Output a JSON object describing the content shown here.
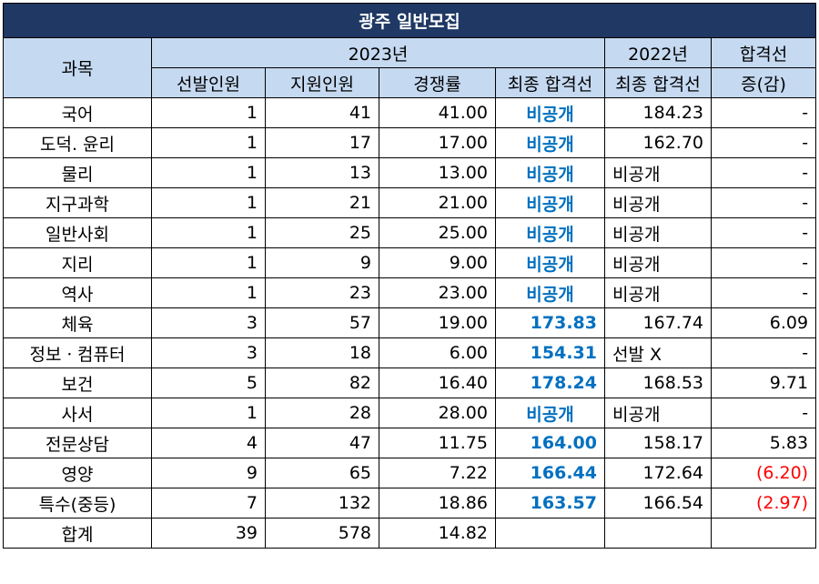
{
  "title": "광주 일반모집",
  "header": {
    "subject": "과목",
    "year2023": "2023년",
    "year2022": "2022년",
    "cutoff_top": "합격선",
    "cutoff_bottom": "증(감)",
    "selected": "선발인원",
    "applicants": "지원인원",
    "ratio": "경쟁률",
    "final_cutoff_2023": "최종 합격선",
    "final_cutoff_2022": "최종 합격선"
  },
  "rows": [
    {
      "subject": "국어",
      "selected": "1",
      "applicants": "41",
      "ratio": "41.00",
      "cut2023": "비공개",
      "cut2022": "184.23",
      "change": "-"
    },
    {
      "subject": "도덕. 윤리",
      "selected": "1",
      "applicants": "17",
      "ratio": "17.00",
      "cut2023": "비공개",
      "cut2022": "162.70",
      "change": "-"
    },
    {
      "subject": "물리",
      "selected": "1",
      "applicants": "13",
      "ratio": "13.00",
      "cut2023": "비공개",
      "cut2022": "비공개",
      "change": "-"
    },
    {
      "subject": "지구과학",
      "selected": "1",
      "applicants": "21",
      "ratio": "21.00",
      "cut2023": "비공개",
      "cut2022": "비공개",
      "change": "-"
    },
    {
      "subject": "일반사회",
      "selected": "1",
      "applicants": "25",
      "ratio": "25.00",
      "cut2023": "비공개",
      "cut2022": "비공개",
      "change": "-"
    },
    {
      "subject": "지리",
      "selected": "1",
      "applicants": "9",
      "ratio": "9.00",
      "cut2023": "비공개",
      "cut2022": "비공개",
      "change": "-"
    },
    {
      "subject": "역사",
      "selected": "1",
      "applicants": "23",
      "ratio": "23.00",
      "cut2023": "비공개",
      "cut2022": "비공개",
      "change": "-"
    },
    {
      "subject": "체육",
      "selected": "3",
      "applicants": "57",
      "ratio": "19.00",
      "cut2023": "173.83",
      "cut2022": "167.74",
      "change": "6.09"
    },
    {
      "subject": "정보ㆍ컴퓨터",
      "selected": "3",
      "applicants": "18",
      "ratio": "6.00",
      "cut2023": "154.31",
      "cut2022": "선발 X",
      "change": "-"
    },
    {
      "subject": "보건",
      "selected": "5",
      "applicants": "82",
      "ratio": "16.40",
      "cut2023": "178.24",
      "cut2022": "168.53",
      "change": "9.71"
    },
    {
      "subject": "사서",
      "selected": "1",
      "applicants": "28",
      "ratio": "28.00",
      "cut2023": "비공개",
      "cut2022": "비공개",
      "change": "-"
    },
    {
      "subject": "전문상담",
      "selected": "4",
      "applicants": "47",
      "ratio": "11.75",
      "cut2023": "164.00",
      "cut2022": "158.17",
      "change": "5.83"
    },
    {
      "subject": "영양",
      "selected": "9",
      "applicants": "65",
      "ratio": "7.22",
      "cut2023": "166.44",
      "cut2022": "172.64",
      "change": "(6.20)"
    },
    {
      "subject": "특수(중등)",
      "selected": "7",
      "applicants": "132",
      "ratio": "18.86",
      "cut2023": "163.57",
      "cut2022": "166.54",
      "change": "(2.97)"
    }
  ],
  "total": {
    "subject": "합계",
    "selected": "39",
    "applicants": "578",
    "ratio": "14.82",
    "cut2023": "",
    "cut2022": "",
    "change": ""
  },
  "colors": {
    "title_bg": "#1f3864",
    "header_bg": "#c5d9f1",
    "highlight": "#0070c0",
    "negative": "#ff0000"
  }
}
